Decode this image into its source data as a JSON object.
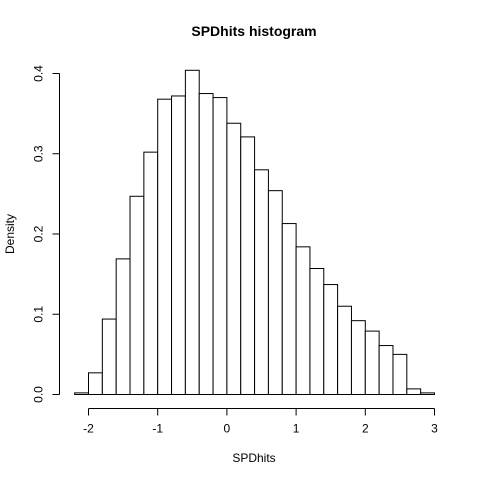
{
  "chart_data": {
    "type": "bar",
    "title": "SPDhits  histogram",
    "xlabel": "SPDhits",
    "ylabel": "Density",
    "xlim": [
      -2.2,
      3.0
    ],
    "ylim": [
      0,
      0.4
    ],
    "x_ticks": [
      {
        "value": -2,
        "label": "-2"
      },
      {
        "value": -1,
        "label": "-1"
      },
      {
        "value": 0,
        "label": "0"
      },
      {
        "value": 1,
        "label": "1"
      },
      {
        "value": 2,
        "label": "2"
      },
      {
        "value": 3,
        "label": "3"
      }
    ],
    "y_ticks": [
      {
        "value": 0.0,
        "label": "0.0"
      },
      {
        "value": 0.1,
        "label": "0.1"
      },
      {
        "value": 0.2,
        "label": "0.2"
      },
      {
        "value": 0.3,
        "label": "0.3"
      },
      {
        "value": 0.4,
        "label": "0.4"
      }
    ],
    "bin_edges": [
      -2.2,
      -2.0,
      -1.8,
      -1.6,
      -1.4,
      -1.2,
      -1.0,
      -0.8,
      -0.6,
      -0.4,
      -0.2,
      0.0,
      0.2,
      0.4,
      0.6,
      0.8,
      1.0,
      1.2,
      1.4,
      1.6,
      1.8,
      2.0,
      2.2,
      2.4,
      2.6,
      2.8,
      3.0
    ],
    "values": [
      0.002,
      0.027,
      0.094,
      0.169,
      0.247,
      0.302,
      0.368,
      0.372,
      0.404,
      0.375,
      0.37,
      0.338,
      0.321,
      0.28,
      0.254,
      0.213,
      0.184,
      0.157,
      0.137,
      0.11,
      0.092,
      0.079,
      0.061,
      0.05,
      0.007,
      0.002
    ]
  }
}
